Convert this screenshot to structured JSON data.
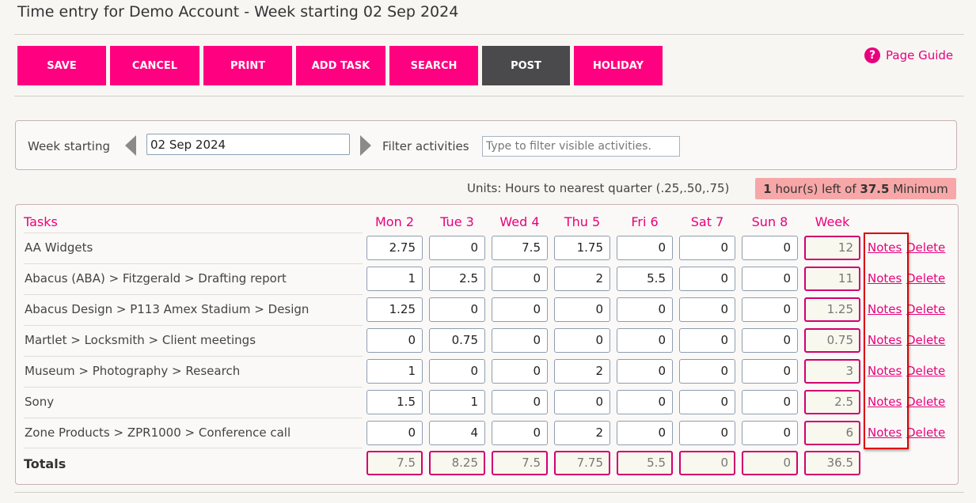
{
  "page": {
    "title": "Time entry for Demo Account - Week starting 02 Sep 2024"
  },
  "toolbar": {
    "buttons": [
      {
        "label": "SAVE",
        "style": "pink"
      },
      {
        "label": "CANCEL",
        "style": "pink"
      },
      {
        "label": "PRINT",
        "style": "pink"
      },
      {
        "label": "ADD TASK",
        "style": "pink"
      },
      {
        "label": "SEARCH",
        "style": "pink"
      },
      {
        "label": "POST",
        "style": "dark"
      },
      {
        "label": "HOLIDAY",
        "style": "pink"
      }
    ],
    "page_guide": "Page Guide",
    "page_guide_icon": "help-circle-icon"
  },
  "week": {
    "label": "Week starting",
    "value": "02 Sep 2024",
    "prev_icon": "triangle-left-icon",
    "next_icon": "triangle-right-icon",
    "filter_label": "Filter activities",
    "filter_placeholder": "Type to filter visible activities."
  },
  "units": {
    "text": "Units: Hours to nearest quarter (.25,.50,.75)",
    "hours_left": "1",
    "middle": " hour(s) left of ",
    "minimum_value": "37.5",
    "minimum_suffix": " Minimum"
  },
  "grid": {
    "tasks_header": "Tasks",
    "columns": [
      "Mon 2",
      "Tue 3",
      "Wed 4",
      "Thu 5",
      "Fri 6",
      "Sat 7",
      "Sun 8",
      "Week"
    ],
    "rows": [
      {
        "task": "AA Widgets",
        "hours": [
          "2.75",
          "0",
          "7.5",
          "1.75",
          "0",
          "0",
          "0"
        ],
        "week": "12"
      },
      {
        "task": "Abacus (ABA) > Fitzgerald > Drafting report",
        "hours": [
          "1",
          "2.5",
          "0",
          "2",
          "5.5",
          "0",
          "0"
        ],
        "week": "11"
      },
      {
        "task": "Abacus Design > P113 Amex Stadium > Design",
        "hours": [
          "1.25",
          "0",
          "0",
          "0",
          "0",
          "0",
          "0"
        ],
        "week": "1.25"
      },
      {
        "task": "Martlet > Locksmith > Client meetings",
        "hours": [
          "0",
          "0.75",
          "0",
          "0",
          "0",
          "0",
          "0"
        ],
        "week": "0.75"
      },
      {
        "task": "Museum > Photography > Research",
        "hours": [
          "1",
          "0",
          "0",
          "2",
          "0",
          "0",
          "0"
        ],
        "week": "3"
      },
      {
        "task": "Sony",
        "hours": [
          "1.5",
          "1",
          "0",
          "0",
          "0",
          "0",
          "0"
        ],
        "week": "2.5"
      },
      {
        "task": "Zone Products > ZPR1000 > Conference call",
        "hours": [
          "0",
          "4",
          "0",
          "2",
          "0",
          "0",
          "0"
        ],
        "week": "6"
      }
    ],
    "notes_label": "Notes",
    "delete_label": "Delete",
    "totals_label": "Totals",
    "totals": [
      "7.5",
      "8.25",
      "7.5",
      "7.75",
      "5.5",
      "0",
      "0",
      "36.5"
    ]
  },
  "colors": {
    "accent": "#ff0080",
    "dark_button": "#4a4a4c",
    "link": "#e8007c",
    "minimum_badge": "#f7a7a7",
    "highlight": "#dd0000"
  }
}
